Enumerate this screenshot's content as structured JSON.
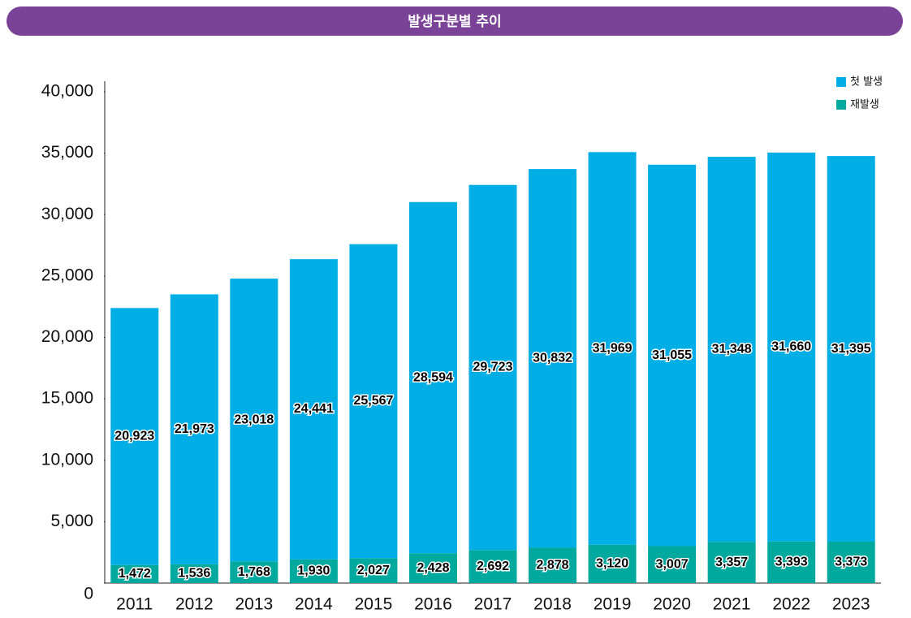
{
  "chart_data": {
    "type": "stacked_bar",
    "title": "발생구분별 추이",
    "categories": [
      "2011",
      "2012",
      "2013",
      "2014",
      "2015",
      "2016",
      "2017",
      "2018",
      "2019",
      "2020",
      "2021",
      "2022",
      "2023"
    ],
    "series": [
      {
        "name": "첫 발생",
        "color": "#00aee6",
        "values": [
          20923,
          21973,
          23018,
          24441,
          25567,
          28594,
          29723,
          30832,
          31969,
          31055,
          31348,
          31660,
          31395
        ],
        "value_labels": [
          "20,923",
          "21,973",
          "23,018",
          "24,441",
          "25,567",
          "28,594",
          "29,723",
          "30,832",
          "31,969",
          "31,055",
          "31,348",
          "31,660",
          "31,395"
        ]
      },
      {
        "name": "재발생",
        "color": "#00a99d",
        "values": [
          1472,
          1536,
          1768,
          1930,
          2027,
          2428,
          2692,
          2878,
          3120,
          3007,
          3357,
          3393,
          3373
        ],
        "value_labels": [
          "1,472",
          "1,536",
          "1,768",
          "1,930",
          "2,027",
          "2,428",
          "2,692",
          "2,878",
          "3,120",
          "3,007",
          "3,357",
          "3,393",
          "3,373"
        ]
      }
    ],
    "ylim": [
      0,
      40000
    ],
    "yticks": [
      0,
      {
        "value": 5000,
        "label": "5,000"
      },
      {
        "value": 10000,
        "label": "10,000"
      },
      {
        "value": 15000,
        "label": "15,000"
      },
      {
        "value": 20000,
        "label": "20,000"
      },
      {
        "value": 25000,
        "label": "25,000"
      },
      {
        "value": 30000,
        "label": "30,000"
      },
      {
        "value": 35000,
        "label": "35,000"
      },
      {
        "value": 40000,
        "label": "40,000"
      }
    ],
    "legend": "top-right"
  }
}
